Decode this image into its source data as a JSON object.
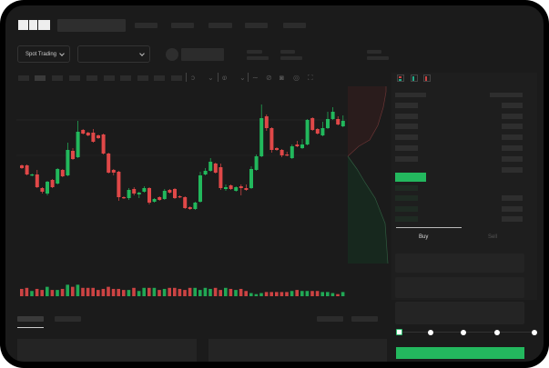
{
  "header": {
    "logo_text": "OKX"
  },
  "market_bar": {
    "mode_dropdown": "Spot Trading"
  },
  "trade_panel": {
    "tabs": [
      "Buy",
      "Sell"
    ],
    "active_tab": "Buy",
    "leverage_slider_level": 0
  },
  "colors": {
    "up": "#22b85c",
    "down": "#e04848",
    "background": "#1b1b1b"
  },
  "icons": [
    "chevron-down-icon",
    "indicator-icon",
    "line-icon",
    "ruler-icon",
    "camera-icon",
    "settings-icon",
    "fullscreen-icon",
    "orderbook-both-icon",
    "orderbook-bids-icon",
    "orderbook-asks-icon"
  ],
  "chart_data": {
    "type": "candlestick",
    "ylim": [
      0,
      150
    ],
    "grid": true,
    "candles": [
      [
        68,
        65,
        69,
        64
      ],
      [
        68,
        58,
        69,
        57
      ],
      [
        57,
        58,
        59,
        56
      ],
      [
        58,
        44,
        63,
        43
      ],
      [
        43,
        39,
        44,
        37
      ],
      [
        37,
        50,
        51,
        35
      ],
      [
        52,
        44,
        53,
        43
      ],
      [
        48,
        64,
        65,
        47
      ],
      [
        63,
        56,
        64,
        55
      ],
      [
        57,
        85,
        93,
        56
      ],
      [
        84,
        75,
        87,
        74
      ],
      [
        77,
        105,
        117,
        76
      ],
      [
        107,
        103,
        108,
        102
      ],
      [
        104,
        101,
        105,
        100
      ],
      [
        104,
        94,
        108,
        93
      ],
      [
        101,
        98,
        102,
        97
      ],
      [
        102,
        81,
        103,
        80
      ],
      [
        81,
        60,
        82,
        59
      ],
      [
        63,
        60,
        64,
        57
      ],
      [
        61,
        33,
        62,
        29
      ],
      [
        33,
        32,
        34,
        31
      ],
      [
        32,
        41,
        43,
        30
      ],
      [
        42,
        37,
        44,
        35
      ],
      [
        36,
        38,
        39,
        32
      ],
      [
        39,
        43,
        45,
        38
      ],
      [
        43,
        27,
        44,
        25
      ],
      [
        28,
        31,
        32,
        27
      ],
      [
        33,
        30,
        34,
        29
      ],
      [
        31,
        40,
        42,
        30
      ],
      [
        41,
        38,
        42,
        37
      ],
      [
        42,
        32,
        43,
        31
      ],
      [
        34,
        33,
        35,
        32
      ],
      [
        33,
        21,
        34,
        20
      ],
      [
        22,
        20,
        23,
        19
      ],
      [
        20,
        27,
        28,
        19
      ],
      [
        28,
        57,
        61,
        27
      ],
      [
        58,
        62,
        65,
        57
      ],
      [
        62,
        72,
        76,
        61
      ],
      [
        70,
        60,
        71,
        59
      ],
      [
        66,
        43,
        70,
        41
      ],
      [
        42,
        44,
        47,
        40
      ],
      [
        46,
        42,
        47,
        41
      ],
      [
        40,
        44,
        45,
        39
      ],
      [
        45,
        43,
        47,
        35
      ],
      [
        43,
        41,
        47,
        40
      ],
      [
        43,
        64,
        67,
        42
      ],
      [
        63,
        78,
        80,
        62
      ],
      [
        78,
        120,
        135,
        77
      ],
      [
        122,
        109,
        124,
        106
      ],
      [
        109,
        85,
        110,
        82
      ],
      [
        87,
        85,
        88,
        84
      ],
      [
        85,
        79,
        86,
        77
      ],
      [
        80,
        79,
        83,
        78
      ],
      [
        76,
        89,
        91,
        75
      ],
      [
        91,
        89,
        95,
        88
      ],
      [
        87,
        91,
        97,
        86
      ],
      [
        91,
        118,
        119,
        90
      ],
      [
        120,
        107,
        121,
        106
      ],
      [
        108,
        103,
        109,
        102
      ],
      [
        101,
        109,
        116,
        100
      ],
      [
        109,
        119,
        127,
        108
      ],
      [
        119,
        127,
        132,
        118
      ],
      [
        119,
        113,
        122,
        112
      ],
      [
        111,
        117,
        123,
        110
      ]
    ],
    "volume": [
      7,
      8,
      5,
      7,
      6,
      9,
      6,
      6,
      7,
      11,
      9,
      11,
      8,
      8,
      8,
      6,
      7,
      9,
      7,
      7,
      6,
      6,
      8,
      5,
      8,
      8,
      8,
      6,
      7,
      8,
      8,
      7,
      6,
      8,
      8,
      6,
      8,
      7,
      8,
      6,
      8,
      7,
      6,
      7,
      5,
      3,
      2,
      3,
      4,
      4,
      4,
      4,
      4,
      5,
      6,
      5,
      5,
      5,
      5,
      4,
      4,
      3,
      2,
      4
    ]
  }
}
